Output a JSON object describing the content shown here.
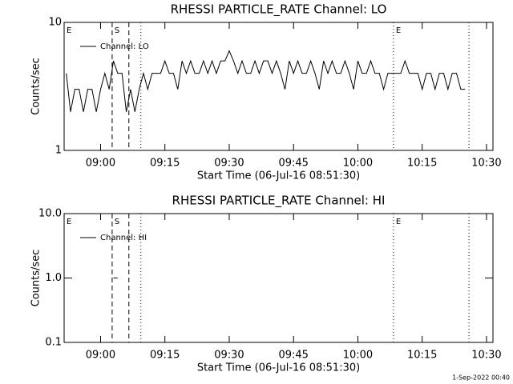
{
  "chart_data": [
    {
      "type": "line",
      "title": "RHESSI PARTICLE_RATE Channel: LO",
      "x_label": "Start Time (06-Jul-16 08:51:30)",
      "y_label": "Counts/sec",
      "log_y": true,
      "legend": "upper left",
      "xlim": [
        531.5,
        631.5
      ],
      "ylim": [
        1,
        10
      ],
      "xticks": [
        {
          "value": 540,
          "label": "09:00"
        },
        {
          "value": 555,
          "label": "09:15"
        },
        {
          "value": 570,
          "label": "09:30"
        },
        {
          "value": 585,
          "label": "09:45"
        },
        {
          "value": 600,
          "label": "10:00"
        },
        {
          "value": 615,
          "label": "10:15"
        },
        {
          "value": 630,
          "label": "10:30"
        }
      ],
      "yticks": [
        1,
        10
      ],
      "markers": [
        {
          "x": 531.5,
          "style": "none",
          "label": "E"
        },
        {
          "x": 542.7,
          "style": "dashed",
          "label": "S"
        },
        {
          "x": 546.6,
          "style": "dashed"
        },
        {
          "x": 549.4,
          "style": "dotted"
        },
        {
          "x": 608.3,
          "style": "dotted",
          "label": "E"
        },
        {
          "x": 625.9,
          "style": "dotted"
        }
      ],
      "series": [
        {
          "name": "Channel: LO",
          "color": "#000000",
          "x": [
            532,
            533,
            534,
            535,
            536,
            537,
            538,
            539,
            540,
            541,
            542,
            543,
            544,
            545,
            546,
            547,
            548,
            549,
            550,
            551,
            552,
            553,
            554,
            555,
            556,
            557,
            558,
            559,
            560,
            561,
            562,
            563,
            564,
            565,
            566,
            567,
            568,
            569,
            570,
            571,
            572,
            573,
            574,
            575,
            576,
            577,
            578,
            579,
            580,
            581,
            582,
            583,
            584,
            585,
            586,
            587,
            588,
            589,
            590,
            591,
            592,
            593,
            594,
            595,
            596,
            597,
            598,
            599,
            600,
            601,
            602,
            603,
            604,
            605,
            606,
            607,
            608,
            609,
            610,
            611,
            612,
            613,
            614,
            615,
            616,
            617,
            618,
            619,
            620,
            621,
            622,
            623,
            624,
            625
          ],
          "values": [
            4,
            2,
            3,
            3,
            2,
            3,
            3,
            2,
            3,
            4,
            3,
            5,
            4,
            4,
            2,
            3,
            2,
            3,
            4,
            3,
            4,
            4,
            4,
            5,
            4,
            4,
            3,
            5,
            4,
            5,
            4,
            4,
            5,
            4,
            5,
            4,
            5,
            5,
            6,
            5,
            4,
            5,
            4,
            4,
            5,
            4,
            5,
            5,
            4,
            5,
            4,
            3,
            5,
            4,
            5,
            4,
            4,
            5,
            4,
            3,
            5,
            4,
            5,
            4,
            4,
            5,
            4,
            3,
            5,
            4,
            4,
            5,
            4,
            4,
            3,
            4,
            4,
            4,
            4,
            5,
            4,
            4,
            4,
            3,
            4,
            4,
            3,
            4,
            4,
            3,
            4,
            4,
            3,
            3
          ]
        }
      ]
    },
    {
      "type": "line",
      "title": "RHESSI PARTICLE_RATE Channel: HI",
      "x_label": "Start Time (06-Jul-16 08:51:30)",
      "y_label": "Counts/sec",
      "log_y": true,
      "legend": "upper left",
      "xlim": [
        531.5,
        631.5
      ],
      "ylim": [
        0.1,
        10
      ],
      "xticks": [
        {
          "value": 540,
          "label": "09:00"
        },
        {
          "value": 555,
          "label": "09:15"
        },
        {
          "value": 570,
          "label": "09:30"
        },
        {
          "value": 585,
          "label": "09:45"
        },
        {
          "value": 600,
          "label": "10:00"
        },
        {
          "value": 615,
          "label": "10:15"
        },
        {
          "value": 630,
          "label": "10:30"
        }
      ],
      "yticks": [
        0.1,
        {
          "value": 1,
          "label": "1.0"
        },
        {
          "value": 10,
          "label": "10.0"
        }
      ],
      "markers": [
        {
          "x": 531.5,
          "style": "none",
          "label": "E"
        },
        {
          "x": 542.7,
          "style": "dashed",
          "label": "S"
        },
        {
          "x": 546.6,
          "style": "dashed"
        },
        {
          "x": 549.4,
          "style": "dotted"
        },
        {
          "x": 608.3,
          "style": "dotted",
          "label": "E"
        },
        {
          "x": 625.9,
          "style": "dotted"
        }
      ],
      "series": [
        {
          "name": "Channel: HI",
          "color": "#000000",
          "x": [
            543,
            544
          ],
          "values": [
            1,
            1
          ]
        }
      ]
    }
  ],
  "footer": "1-Sep-2022 00:40"
}
